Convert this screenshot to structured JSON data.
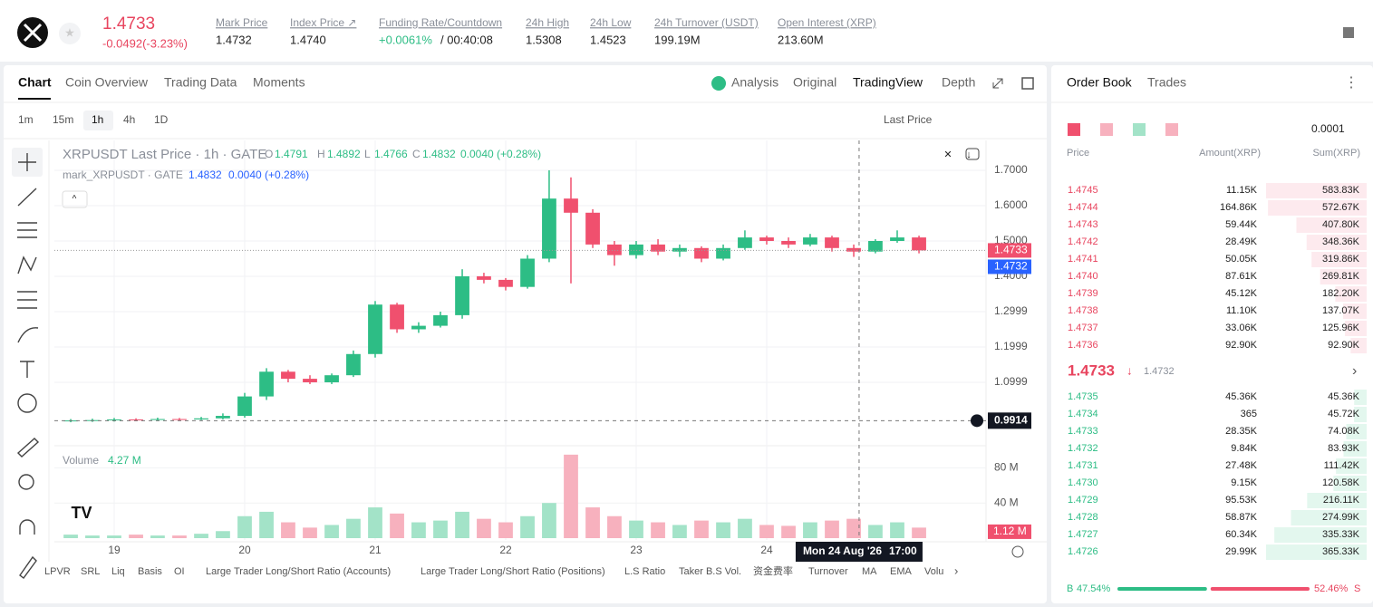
{
  "header": {
    "price": "1.4733",
    "change": "-0.0492(-3.23%)",
    "stats": [
      {
        "label": "Mark Price",
        "value": "1.4732"
      },
      {
        "label": "Index Price ↗",
        "value": "1.4740"
      },
      {
        "label": "Funding Rate/Countdown",
        "value": "+0.0061%",
        "countdown": "/ 00:40:08"
      },
      {
        "label": "24h High",
        "value": "1.5308"
      },
      {
        "label": "24h Low",
        "value": "1.4523"
      },
      {
        "label": "24h Turnover (USDT)",
        "value": "199.19M"
      },
      {
        "label": "Open Interest (XRP)",
        "value": "213.60M"
      }
    ]
  },
  "tabs": {
    "left": [
      "Chart",
      "Coin Overview",
      "Trading Data",
      "Moments"
    ],
    "right": [
      "Analysis",
      "Original",
      "TradingView",
      "Depth"
    ]
  },
  "toolbar": {
    "intervals": [
      "1m",
      "15m",
      "1h",
      "4h",
      "1D"
    ],
    "price_type": "Last Price"
  },
  "chart_data": {
    "type": "candlestick",
    "title": "XRPUSDT Last Price · 1h · GATE",
    "legend": [
      {
        "key": "O",
        "value": "1.4791"
      },
      {
        "key": "H",
        "value": "1.4892"
      },
      {
        "key": "L",
        "value": "1.4766"
      },
      {
        "key": "C",
        "value": "1.4832"
      }
    ],
    "legend_change": "0.0040 (+0.28%)",
    "mark_legend": {
      "name": "mark_XRPUSDT · GATE",
      "value": "1.4832",
      "change": "0.0040 (+0.28%)"
    },
    "volume_title": "Volume",
    "volume_value": "4.27 M",
    "up_color": "#2dbd85",
    "down_color": "#f0506e",
    "up_volume_color": "#a3e3c8",
    "down_volume_color": "#f7b1be",
    "x": [
      18.667,
      18.833,
      19.0,
      19.167,
      19.333,
      19.5,
      19.667,
      19.833,
      20.0,
      20.167,
      20.333,
      20.5,
      20.667,
      20.833,
      21.0,
      21.167,
      21.333,
      21.5,
      21.667,
      21.833,
      22.0,
      22.167,
      22.333,
      22.5,
      22.667,
      22.833,
      23.0,
      23.167,
      23.333,
      23.5,
      23.667,
      23.833,
      24.0,
      24.167,
      24.333,
      24.5,
      24.667,
      24.833,
      25.0,
      25.167
    ],
    "open": [
      0.99,
      0.992,
      0.993,
      0.995,
      0.994,
      0.996,
      0.995,
      0.998,
      1.005,
      1.06,
      1.13,
      1.11,
      1.1,
      1.12,
      1.18,
      1.32,
      1.25,
      1.26,
      1.29,
      1.4,
      1.39,
      1.37,
      1.45,
      1.62,
      1.58,
      1.49,
      1.46,
      1.49,
      1.47,
      1.48,
      1.45,
      1.48,
      1.51,
      1.5,
      1.49,
      1.51,
      1.48,
      1.47,
      1.5,
      1.51
    ],
    "high": [
      0.996,
      0.997,
      0.999,
      0.998,
      1.0,
      0.999,
      1.002,
      1.012,
      1.07,
      1.14,
      1.135,
      1.12,
      1.125,
      1.19,
      1.33,
      1.325,
      1.27,
      1.3,
      1.42,
      1.41,
      1.395,
      1.46,
      1.7,
      1.68,
      1.59,
      1.5,
      1.5,
      1.505,
      1.49,
      1.485,
      1.49,
      1.53,
      1.515,
      1.51,
      1.52,
      1.515,
      1.49,
      1.505,
      1.53,
      1.515
    ],
    "low": [
      0.987,
      0.988,
      0.989,
      0.99,
      0.991,
      0.991,
      0.993,
      0.995,
      1.0,
      1.05,
      1.1,
      1.095,
      1.095,
      1.115,
      1.17,
      1.24,
      1.24,
      1.255,
      1.28,
      1.38,
      1.36,
      1.365,
      1.44,
      1.38,
      1.48,
      1.43,
      1.45,
      1.46,
      1.455,
      1.44,
      1.445,
      1.475,
      1.49,
      1.48,
      1.485,
      1.47,
      1.455,
      1.465,
      1.495,
      1.465
    ],
    "close": [
      0.992,
      0.993,
      0.995,
      0.994,
      0.996,
      0.995,
      0.998,
      1.005,
      1.06,
      1.13,
      1.11,
      1.1,
      1.12,
      1.18,
      1.32,
      1.25,
      1.26,
      1.29,
      1.4,
      1.39,
      1.37,
      1.45,
      1.62,
      1.58,
      1.49,
      1.46,
      1.49,
      1.47,
      1.48,
      1.45,
      1.48,
      1.51,
      1.5,
      1.49,
      1.51,
      1.48,
      1.47,
      1.5,
      1.51,
      1.4733
    ],
    "volume": [
      4,
      3,
      3,
      4,
      3,
      3,
      5,
      8,
      25,
      30,
      18,
      12,
      15,
      22,
      35,
      28,
      18,
      20,
      30,
      22,
      18,
      25,
      40,
      95,
      35,
      25,
      20,
      18,
      15,
      20,
      18,
      22,
      15,
      14,
      18,
      20,
      22,
      15,
      18,
      12
    ],
    "xlim": [
      18.5417,
      25.6806
    ],
    "xticks": [
      19,
      20,
      21,
      22,
      23,
      24
    ],
    "ylim": [
      0.9256,
      1.7846
    ],
    "yticks": [
      {
        "value": 1.7,
        "label": "1.7000"
      },
      {
        "value": 1.6,
        "label": "1.6000"
      },
      {
        "value": 1.5,
        "label": "1.5000"
      },
      {
        "value": 1.4,
        "label": "1.4000"
      },
      1.2999,
      1.1999,
      1.0999
    ],
    "volume_ylim": [
      0,
      100
    ],
    "volume_ticks": [
      {
        "value": 80,
        "label": "80 M"
      },
      {
        "value": 40,
        "label": "40 M"
      }
    ],
    "last_price": 1.4733,
    "mark_price": 1.4732,
    "volume_marker": {
      "value": 1.12,
      "label": "1.12 M"
    },
    "crosshair": {
      "x": 24.708,
      "y": 0.9914,
      "date_label": "Mon 24 Aug '26",
      "time_label": "17:00"
    }
  },
  "order_book": {
    "tabs": [
      "Order Book",
      "Trades"
    ],
    "precision": "0.0001",
    "columns": [
      "Price",
      "Amount(XRP)",
      "Sum(XRP)"
    ],
    "asks": [
      [
        "1.4745",
        "11.15K",
        "583.83K"
      ],
      [
        "1.4744",
        "164.86K",
        "572.67K"
      ],
      [
        "1.4743",
        "59.44K",
        "407.80K"
      ],
      [
        "1.4742",
        "28.49K",
        "348.36K"
      ],
      [
        "1.4741",
        "50.05K",
        "319.86K"
      ],
      [
        "1.4740",
        "87.61K",
        "269.81K"
      ],
      [
        "1.4739",
        "45.12K",
        "182.20K"
      ],
      [
        "1.4738",
        "11.10K",
        "137.07K"
      ],
      [
        "1.4737",
        "33.06K",
        "125.96K"
      ],
      [
        "1.4736",
        "92.90K",
        "92.90K"
      ]
    ],
    "last": "1.4733",
    "mark": "1.4732",
    "bids": [
      [
        "1.4735",
        "45.36K",
        "45.36K"
      ],
      [
        "1.4734",
        "365",
        "45.72K"
      ],
      [
        "1.4733",
        "28.35K",
        "74.08K"
      ],
      [
        "1.4732",
        "9.84K",
        "83.93K"
      ],
      [
        "1.4731",
        "27.48K",
        "111.42K"
      ],
      [
        "1.4730",
        "9.15K",
        "120.58K"
      ],
      [
        "1.4729",
        "95.53K",
        "216.11K"
      ],
      [
        "1.4728",
        "58.87K",
        "274.99K"
      ],
      [
        "1.4727",
        "60.34K",
        "335.33K"
      ],
      [
        "1.4726",
        "29.99K",
        "365.33K"
      ]
    ],
    "buy": {
      "key": "B",
      "value": 47.54,
      "label": "47.54%"
    },
    "sell": {
      "key": "S",
      "value": 52.46,
      "label": "52.46%"
    }
  },
  "indicators": [
    "LPVR",
    "SRL",
    "Liq",
    "Basis",
    "OI",
    "Large Trader Long/Short Ratio (Accounts)",
    "Large Trader Long/Short Ratio (Positions)",
    "L.S Ratio",
    "Taker B.S Vol.",
    "资金费率",
    "Turnover",
    "MA",
    "EMA",
    "Volu"
  ]
}
